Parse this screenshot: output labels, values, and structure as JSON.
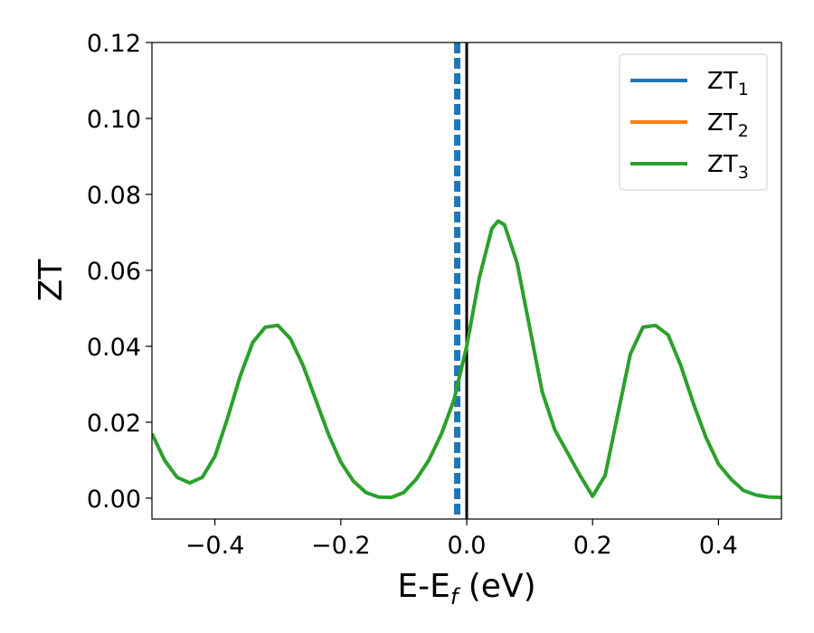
{
  "chart_data": {
    "type": "line",
    "xlabel": "E-E",
    "xlabel_sub": "f",
    "xlabel_unit": " (eV)",
    "ylabel": "ZT",
    "xlim": [
      -0.5,
      0.5
    ],
    "ylim": [
      -0.0055,
      0.12
    ],
    "xticks": [
      -0.4,
      -0.2,
      0.0,
      0.2,
      0.4
    ],
    "xtick_labels": [
      "−0.4",
      "−0.2",
      "0.0",
      "0.2",
      "0.4"
    ],
    "yticks": [
      0.0,
      0.02,
      0.04,
      0.06,
      0.08,
      0.1,
      0.12
    ],
    "ytick_labels": [
      "0.00",
      "0.02",
      "0.04",
      "0.06",
      "0.08",
      "0.10",
      "0.12"
    ],
    "grid": false,
    "legend_position": "top-right",
    "series": [
      {
        "name": "ZT",
        "sub": "1",
        "color": "#1f77b4"
      },
      {
        "name": "ZT",
        "sub": "2",
        "color": "#ff7f0e"
      },
      {
        "name": "ZT",
        "sub": "3",
        "color": "#2ca02c",
        "x": [
          -0.5,
          -0.48,
          -0.46,
          -0.44,
          -0.42,
          -0.4,
          -0.38,
          -0.36,
          -0.34,
          -0.32,
          -0.3,
          -0.28,
          -0.26,
          -0.24,
          -0.22,
          -0.2,
          -0.18,
          -0.16,
          -0.14,
          -0.12,
          -0.1,
          -0.08,
          -0.06,
          -0.04,
          -0.02,
          0.0,
          0.02,
          0.04,
          0.05,
          0.06,
          0.08,
          0.1,
          0.12,
          0.14,
          0.16,
          0.18,
          0.2,
          0.22,
          0.24,
          0.26,
          0.28,
          0.3,
          0.32,
          0.34,
          0.36,
          0.38,
          0.4,
          0.42,
          0.44,
          0.46,
          0.48,
          0.5
        ],
        "y": [
          0.017,
          0.01,
          0.0055,
          0.004,
          0.0055,
          0.011,
          0.021,
          0.032,
          0.041,
          0.045,
          0.0455,
          0.042,
          0.035,
          0.026,
          0.017,
          0.0095,
          0.0045,
          0.0015,
          0.0003,
          0.0002,
          0.0015,
          0.005,
          0.01,
          0.017,
          0.026,
          0.04,
          0.058,
          0.071,
          0.073,
          0.072,
          0.062,
          0.045,
          0.028,
          0.018,
          0.012,
          0.006,
          0.0005,
          0.006,
          0.022,
          0.038,
          0.045,
          0.0455,
          0.043,
          0.035,
          0.025,
          0.016,
          0.009,
          0.005,
          0.002,
          0.0008,
          0.0003,
          0.0002
        ]
      }
    ],
    "vertical_lines": [
      {
        "x": -0.015,
        "style": "dashed",
        "color": "#1f77b4"
      },
      {
        "x": 0.0,
        "style": "solid",
        "color": "#000000"
      }
    ]
  }
}
